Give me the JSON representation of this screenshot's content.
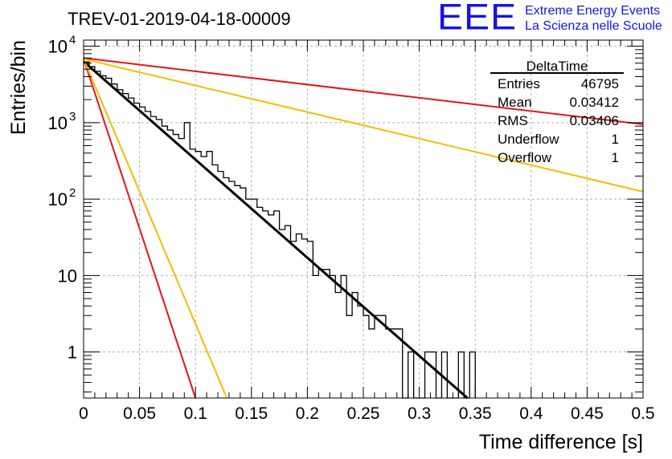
{
  "header": {
    "run_title": "TREV-01-2019-04-18-00009"
  },
  "logo": {
    "letters": "EEE",
    "line1": "Extreme Energy Events",
    "line2": "La Scienza nelle Scuole",
    "color": "#1414e6"
  },
  "stats": {
    "name": "DeltaTime",
    "rows": [
      {
        "label": "Entries",
        "value": "46795"
      },
      {
        "label": "Mean",
        "value": "0.03412"
      },
      {
        "label": "RMS",
        "value": "0.03406"
      },
      {
        "label": "Underflow",
        "value": "1"
      },
      {
        "label": "Overflow",
        "value": "1"
      }
    ]
  },
  "chart_data": {
    "type": "line",
    "xlabel": "Time difference [s]",
    "ylabel": "Entries/bin",
    "xlim": [
      0,
      0.5
    ],
    "ylim": [
      0.25,
      12000
    ],
    "yscale": "log",
    "grid": true,
    "x_ticks": [
      "0",
      "0.05",
      "0.1",
      "0.15",
      "0.2",
      "0.25",
      "0.3",
      "0.35",
      "0.4",
      "0.45",
      "0.5"
    ],
    "y_ticks": [
      {
        "value": 1,
        "label": "1"
      },
      {
        "value": 10,
        "label": "10"
      },
      {
        "value": 100,
        "label": "10",
        "exp": "2"
      },
      {
        "value": 1000,
        "label": "10",
        "exp": "3"
      },
      {
        "value": 10000,
        "label": "10",
        "exp": "4"
      }
    ],
    "histogram": {
      "color": "#000000",
      "bin_width": 0.005,
      "bins": [
        {
          "x": 0.0,
          "y": 6200
        },
        {
          "x": 0.005,
          "y": 5400
        },
        {
          "x": 0.01,
          "y": 4700
        },
        {
          "x": 0.015,
          "y": 4100
        },
        {
          "x": 0.02,
          "y": 3800
        },
        {
          "x": 0.025,
          "y": 3200
        },
        {
          "x": 0.03,
          "y": 2700
        },
        {
          "x": 0.035,
          "y": 2400
        },
        {
          "x": 0.04,
          "y": 2100
        },
        {
          "x": 0.045,
          "y": 1800
        },
        {
          "x": 0.05,
          "y": 1600
        },
        {
          "x": 0.055,
          "y": 1400
        },
        {
          "x": 0.06,
          "y": 1200
        },
        {
          "x": 0.065,
          "y": 1100
        },
        {
          "x": 0.07,
          "y": 900
        },
        {
          "x": 0.075,
          "y": 800
        },
        {
          "x": 0.08,
          "y": 700
        },
        {
          "x": 0.085,
          "y": 620
        },
        {
          "x": 0.09,
          "y": 1000
        },
        {
          "x": 0.095,
          "y": 450
        },
        {
          "x": 0.1,
          "y": 420
        },
        {
          "x": 0.105,
          "y": 360
        },
        {
          "x": 0.11,
          "y": 420
        },
        {
          "x": 0.115,
          "y": 280
        },
        {
          "x": 0.12,
          "y": 230
        },
        {
          "x": 0.125,
          "y": 190
        },
        {
          "x": 0.13,
          "y": 170
        },
        {
          "x": 0.135,
          "y": 150
        },
        {
          "x": 0.14,
          "y": 140
        },
        {
          "x": 0.145,
          "y": 100
        },
        {
          "x": 0.15,
          "y": 100
        },
        {
          "x": 0.155,
          "y": 78
        },
        {
          "x": 0.16,
          "y": 70
        },
        {
          "x": 0.165,
          "y": 62
        },
        {
          "x": 0.17,
          "y": 70
        },
        {
          "x": 0.175,
          "y": 40
        },
        {
          "x": 0.18,
          "y": 45
        },
        {
          "x": 0.185,
          "y": 28
        },
        {
          "x": 0.19,
          "y": 35
        },
        {
          "x": 0.195,
          "y": 30
        },
        {
          "x": 0.2,
          "y": 28
        },
        {
          "x": 0.205,
          "y": 10
        },
        {
          "x": 0.21,
          "y": 12
        },
        {
          "x": 0.215,
          "y": 12
        },
        {
          "x": 0.22,
          "y": 10
        },
        {
          "x": 0.225,
          "y": 6
        },
        {
          "x": 0.23,
          "y": 10
        },
        {
          "x": 0.235,
          "y": 3
        },
        {
          "x": 0.24,
          "y": 6
        },
        {
          "x": 0.245,
          "y": 4
        },
        {
          "x": 0.25,
          "y": 3
        },
        {
          "x": 0.255,
          "y": 2
        },
        {
          "x": 0.26,
          "y": 3
        },
        {
          "x": 0.265,
          "y": 3
        },
        {
          "x": 0.27,
          "y": 2
        },
        {
          "x": 0.275,
          "y": 2
        },
        {
          "x": 0.28,
          "y": 2
        },
        {
          "x": 0.285,
          "y": 0
        },
        {
          "x": 0.29,
          "y": 1
        },
        {
          "x": 0.295,
          "y": 0
        },
        {
          "x": 0.3,
          "y": 0
        },
        {
          "x": 0.305,
          "y": 1
        },
        {
          "x": 0.31,
          "y": 1
        },
        {
          "x": 0.315,
          "y": 0
        },
        {
          "x": 0.32,
          "y": 1
        },
        {
          "x": 0.325,
          "y": 0
        },
        {
          "x": 0.33,
          "y": 0
        },
        {
          "x": 0.335,
          "y": 1
        },
        {
          "x": 0.34,
          "y": 0
        },
        {
          "x": 0.345,
          "y": 1
        }
      ]
    },
    "series": [
      {
        "color": "#000000",
        "x": [
          0.0,
          0.343
        ],
        "y": [
          6300,
          0.25
        ]
      },
      {
        "color": "#e61414",
        "x": [
          0.0,
          0.1
        ],
        "y": [
          6800,
          0.25
        ]
      },
      {
        "color": "#f0be00",
        "x": [
          0.0,
          0.128
        ],
        "y": [
          6800,
          0.25
        ]
      },
      {
        "color": "#e61414",
        "x": [
          0.0,
          0.5
        ],
        "y": [
          7000,
          950
        ]
      },
      {
        "color": "#f0be00",
        "x": [
          0.0,
          0.5
        ],
        "y": [
          6800,
          125
        ]
      }
    ]
  }
}
